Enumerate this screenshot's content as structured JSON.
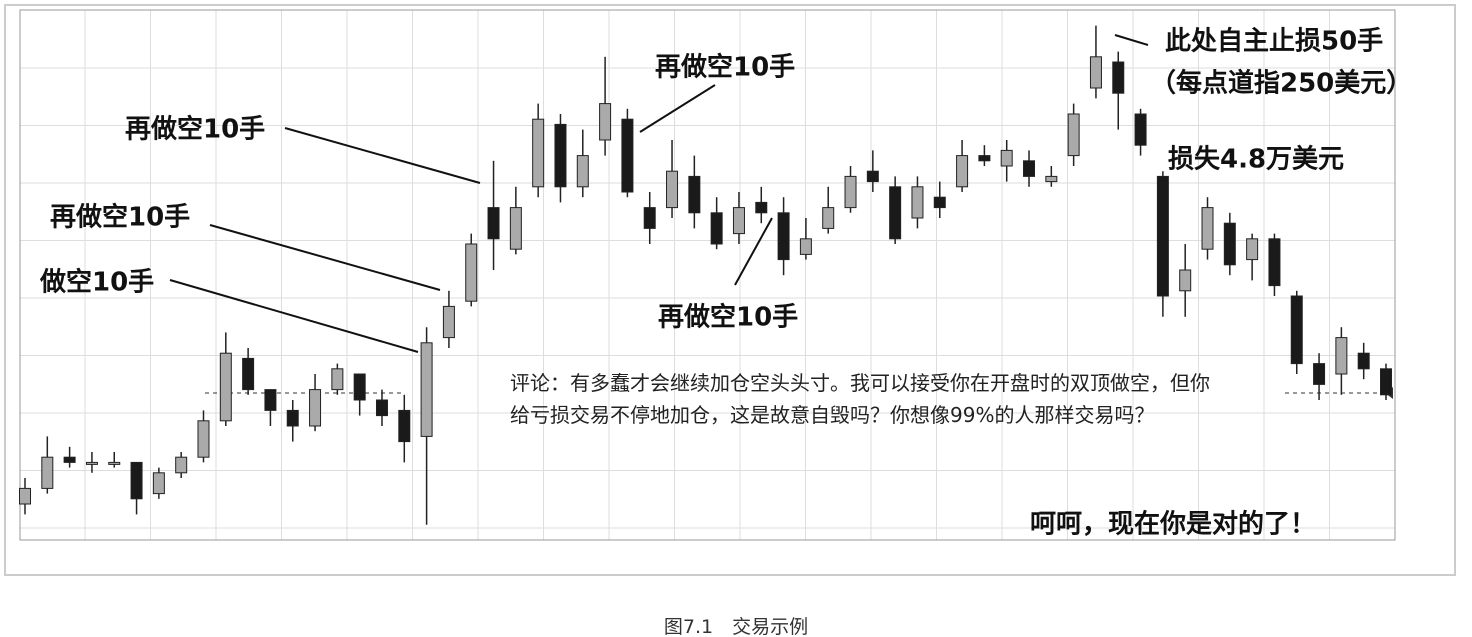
{
  "chart_data": {
    "type": "candlestick",
    "ylim": [
      0,
      100
    ],
    "open": [
      5,
      8,
      14,
      13,
      13,
      13,
      7,
      11,
      14,
      21,
      33,
      27,
      23,
      20,
      27,
      30,
      25,
      23,
      18,
      37,
      44,
      62,
      54,
      66,
      78,
      66,
      75,
      79,
      62,
      62,
      68,
      61,
      57,
      63,
      61,
      53,
      58,
      62,
      69,
      66,
      60,
      64,
      66,
      72,
      70,
      71,
      67,
      72,
      85,
      90,
      80,
      68,
      46,
      54,
      59,
      52,
      56,
      45,
      32,
      30,
      34,
      31
    ],
    "high": [
      10,
      18,
      16,
      15,
      15,
      13,
      12,
      15,
      23,
      38,
      35,
      27,
      25,
      30,
      32,
      30,
      27,
      26,
      39,
      46,
      57,
      71,
      66,
      82,
      80,
      77,
      91,
      81,
      65,
      75,
      72,
      64,
      65,
      66,
      64,
      60,
      66,
      70,
      73,
      68,
      68,
      67,
      75,
      74,
      75,
      73,
      70,
      82,
      97,
      92,
      81,
      69,
      55,
      64,
      61,
      57,
      57,
      46,
      34,
      39,
      36,
      32
    ],
    "low": [
      3,
      7,
      12,
      11,
      12,
      3,
      6,
      10,
      13,
      20,
      26,
      20,
      17,
      19,
      26,
      22,
      20,
      13,
      1,
      35,
      43,
      50,
      53,
      64,
      63,
      64,
      72,
      64,
      55,
      60,
      58,
      54,
      55,
      59,
      49,
      52,
      57,
      61,
      65,
      55,
      58,
      60,
      65,
      70,
      67,
      66,
      66,
      70,
      83,
      77,
      72,
      41,
      41,
      52,
      49,
      48,
      45,
      30,
      25,
      26,
      29,
      25
    ],
    "close": [
      8,
      14,
      13,
      13,
      13,
      6,
      11,
      14,
      21,
      34,
      27,
      23,
      20,
      27,
      31,
      25,
      22,
      17,
      36,
      43,
      55,
      56,
      62,
      79,
      66,
      72,
      82,
      65,
      58,
      69,
      61,
      55,
      62,
      61,
      52,
      56,
      62,
      68,
      67,
      56,
      66,
      62,
      72,
      71,
      73,
      68,
      68,
      80,
      91,
      84,
      74,
      45,
      50,
      62,
      51,
      56,
      47,
      32,
      28,
      37,
      31,
      26
    ],
    "annotations": [
      "再做空10手",
      "再做空10手",
      "做空10手",
      "再做空10手",
      "再做空10手",
      "此处自主止损50手",
      "（每点道指250美元）",
      "损失4.8万美元",
      "呵呵，现在你是对的了！"
    ],
    "comment": "评论：有多蠢才会继续加仓空头头寸。我可以接受你在开盘时的双顶做空，但你给亏损交易不停地加仓，这是故意自毁吗？你想像99%的人那样交易吗？",
    "caption": "图7.1　交易示例"
  }
}
